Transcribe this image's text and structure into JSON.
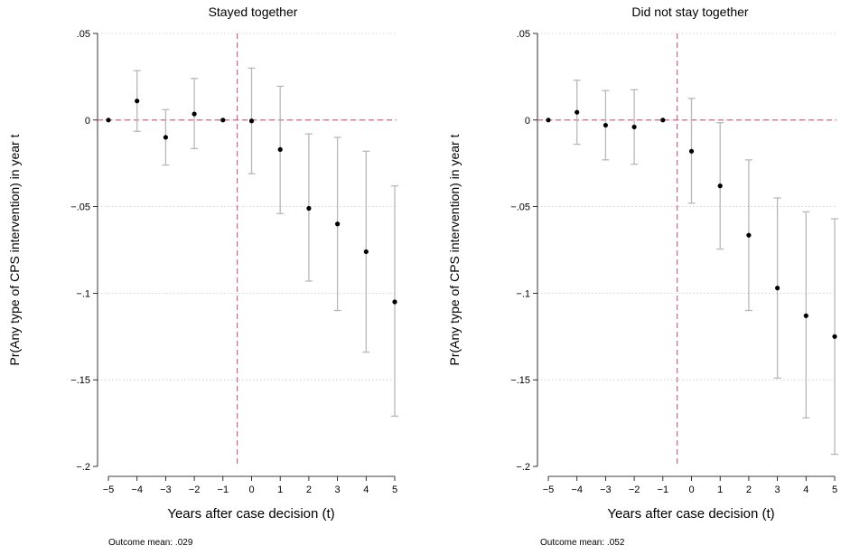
{
  "colors": {
    "ci": "#b8b8b8",
    "point": "#000000",
    "refline": "#c9577a",
    "grid": "#c8c8c8",
    "axis": "#000000"
  },
  "chart_data": [
    {
      "type": "scatter",
      "title": "Stayed together",
      "xlabel": "Years after case decision (t)",
      "ylabel": "Pr(Any type of CPS intervention) in year t",
      "note": "Outcome mean: .029",
      "x_ticks": [
        "−5",
        "−4",
        "−3",
        "−2",
        "−1",
        "0",
        "1",
        "2",
        "3",
        "4",
        "5"
      ],
      "y_ticks": [
        {
          "value": 0.05,
          "label": ".05"
        },
        {
          "value": 0,
          "label": "0"
        },
        {
          "value": -0.05,
          "label": "−.05"
        },
        {
          "value": -0.1,
          "label": "−.1"
        },
        {
          "value": -0.15,
          "label": "−.15"
        },
        {
          "value": -0.2,
          "label": "−.2"
        }
      ],
      "xlim": [
        -5,
        5
      ],
      "ylim": [
        -0.2,
        0.05
      ],
      "grid": true,
      "reference_lines": {
        "x": -0.5,
        "y": 0
      },
      "x": [
        -5,
        -4,
        -3,
        -2,
        -1,
        0,
        1,
        2,
        3,
        4,
        5
      ],
      "estimate": [
        0,
        0.011,
        -0.01,
        0.0035,
        0,
        -0.0005,
        -0.017,
        -0.051,
        -0.06,
        -0.076,
        -0.105
      ],
      "ci_low": [
        null,
        -0.0065,
        -0.026,
        -0.0165,
        null,
        -0.031,
        -0.054,
        -0.093,
        -0.11,
        -0.134,
        -0.171
      ],
      "ci_high": [
        null,
        0.0285,
        0.006,
        0.024,
        null,
        0.03,
        0.0195,
        -0.008,
        -0.01,
        -0.018,
        -0.038
      ]
    },
    {
      "type": "scatter",
      "title": "Did not stay together",
      "xlabel": "Years after case decision (t)",
      "ylabel": "Pr(Any type of CPS intervention) in year t",
      "note": "Outcome mean: .052",
      "x_ticks": [
        "−5",
        "−4",
        "−3",
        "−2",
        "−1",
        "0",
        "1",
        "2",
        "3",
        "4",
        "5"
      ],
      "y_ticks": [
        {
          "value": 0.05,
          "label": ".05"
        },
        {
          "value": 0,
          "label": "0"
        },
        {
          "value": -0.05,
          "label": "−.05"
        },
        {
          "value": -0.1,
          "label": "−.1"
        },
        {
          "value": -0.15,
          "label": "−.15"
        },
        {
          "value": -0.2,
          "label": "−.2"
        }
      ],
      "xlim": [
        -5,
        5
      ],
      "ylim": [
        -0.2,
        0.05
      ],
      "grid": true,
      "reference_lines": {
        "x": -0.5,
        "y": 0
      },
      "x": [
        -5,
        -4,
        -3,
        -2,
        -1,
        0,
        1,
        2,
        3,
        4,
        5
      ],
      "estimate": [
        0,
        0.0045,
        -0.003,
        -0.004,
        0,
        -0.018,
        -0.038,
        -0.0665,
        -0.097,
        -0.113,
        -0.125
      ],
      "ci_low": [
        null,
        -0.014,
        -0.023,
        -0.0255,
        null,
        -0.048,
        -0.0745,
        -0.11,
        -0.149,
        -0.172,
        -0.193
      ],
      "ci_high": [
        null,
        0.023,
        0.017,
        0.0175,
        null,
        0.0125,
        -0.0015,
        -0.023,
        -0.045,
        -0.053,
        -0.057
      ]
    }
  ]
}
